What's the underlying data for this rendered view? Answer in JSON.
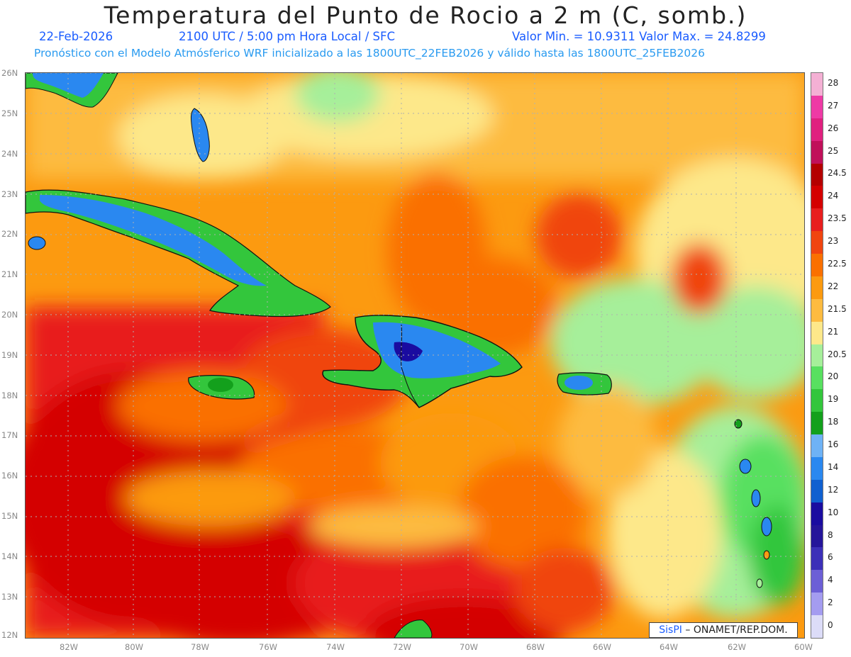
{
  "header": {
    "title": "Temperatura del Punto de Rocio a 2 m (C, somb.)",
    "date": "22-Feb-2026",
    "time": "2100 UTC / 5:00 pm Hora Local / SFC",
    "minmax": "Valor Min. = 10.9311 Valor Max. = 24.8299",
    "model_line": "Pronóstico con el Modelo Atmósferico WRF inicializado a las 1800UTC_22FEB2026 y válido hasta las 1800UTC_25FEB2026"
  },
  "map": {
    "lat_labels": [
      "26N",
      "25N",
      "24N",
      "23N",
      "22N",
      "21N",
      "20N",
      "19N",
      "18N",
      "17N",
      "16N",
      "15N",
      "14N",
      "13N",
      "12N"
    ],
    "lon_labels": [
      "82W",
      "80W",
      "78W",
      "76W",
      "74W",
      "72W",
      "70W",
      "68W",
      "66W",
      "64W",
      "62W",
      "60W"
    ],
    "credit_brand": "SisPI",
    "credit_text": "ONAMET/REP.DOM."
  },
  "legend": {
    "labels": [
      "28",
      "27",
      "26",
      "25",
      "24.5",
      "24",
      "23.5",
      "23",
      "22.5",
      "22",
      "21.5",
      "21",
      "20.5",
      "20",
      "19",
      "18",
      "16",
      "14",
      "12",
      "10",
      "8",
      "6",
      "4",
      "2",
      "0"
    ],
    "colors": [
      "#f4b0d4",
      "#ee3aa5",
      "#e0207f",
      "#c0105a",
      "#b40000",
      "#d40000",
      "#e81e1e",
      "#f04510",
      "#fa7000",
      "#fc9a10",
      "#fdbb40",
      "#fde88a",
      "#a6ef9a",
      "#58e060",
      "#33c63c",
      "#13a01c",
      "#6eb2f5",
      "#2a88f0",
      "#1060d0",
      "#1a0ca0",
      "#25159a",
      "#3c2fb8",
      "#6c5fd6",
      "#a49cf0",
      "#dcdcf8"
    ]
  }
}
